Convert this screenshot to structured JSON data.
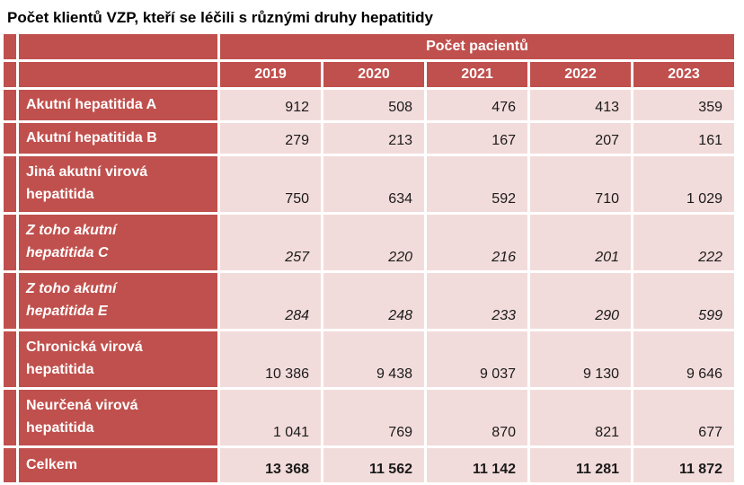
{
  "title": "Počet klientů VZP, kteří se léčili s různými druhy hepatitidy",
  "chart_data": {
    "type": "table",
    "title": "Počet klientů VZP, kteří se léčili s různými druhy hepatitidy",
    "group_header": "Počet pacientů",
    "categories": [
      "2019",
      "2020",
      "2021",
      "2022",
      "2023"
    ],
    "rows": [
      {
        "label_lines": [
          "Akutní hepatitida A"
        ],
        "style": "normal",
        "values": [
          912,
          508,
          476,
          413,
          359
        ]
      },
      {
        "label_lines": [
          "Akutní hepatitida B"
        ],
        "style": "normal",
        "values": [
          279,
          213,
          167,
          207,
          161
        ]
      },
      {
        "label_lines": [
          "Jiná akutní virová",
          "hepatitida"
        ],
        "style": "normal",
        "values": [
          750,
          634,
          592,
          710,
          1029
        ]
      },
      {
        "label_lines": [
          "Z toho akutní",
          "hepatitida C"
        ],
        "style": "italic",
        "values": [
          257,
          220,
          216,
          201,
          222
        ]
      },
      {
        "label_lines": [
          "Z toho akutní",
          "hepatitida E"
        ],
        "style": "italic",
        "values": [
          284,
          248,
          233,
          290,
          599
        ]
      },
      {
        "label_lines": [
          "Chronická virová",
          "hepatitida"
        ],
        "style": "normal",
        "values": [
          10386,
          9438,
          9037,
          9130,
          9646
        ]
      },
      {
        "label_lines": [
          "Neurčená virová",
          "hepatitida"
        ],
        "style": "normal",
        "values": [
          1041,
          769,
          870,
          821,
          677
        ]
      },
      {
        "label_lines": [
          "Celkem"
        ],
        "style": "total",
        "values": [
          13368,
          11562,
          11142,
          11281,
          11872
        ]
      }
    ]
  },
  "colors": {
    "header_red": "#c0504d",
    "cell_pink": "#f2dcdb",
    "grid_white": "#ffffff",
    "number_text": "#1a1a1a"
  }
}
